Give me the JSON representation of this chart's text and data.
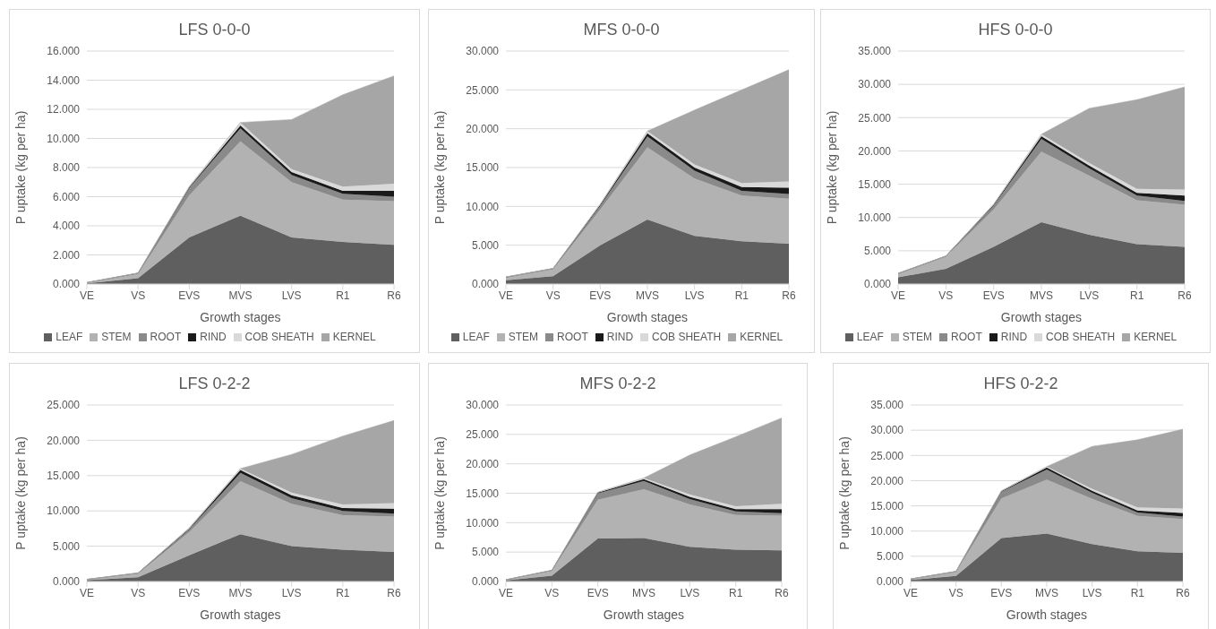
{
  "chart_data": [
    {
      "type": "area",
      "stacked": true,
      "title": "LFS 0-0-0",
      "xlabel": "Growth stages",
      "ylabel": "P uptake (kg per ha)",
      "categories": [
        "VE",
        "VS",
        "EVS",
        "MVS",
        "LVS",
        "R1",
        "R6"
      ],
      "ylim": [
        0,
        16
      ],
      "yticks": [
        {
          "value": 0,
          "label": "0.000"
        },
        {
          "value": 2,
          "label": "2.000"
        },
        {
          "value": 4,
          "label": "4.000"
        },
        {
          "value": 6,
          "label": "6.000"
        },
        {
          "value": 8,
          "label": "8.000"
        },
        {
          "value": 10,
          "label": "10.000"
        },
        {
          "value": 12,
          "label": "12.000"
        },
        {
          "value": 14,
          "label": "14.000"
        },
        {
          "value": 16,
          "label": "16.000"
        }
      ],
      "grid": "y",
      "legend": "bottom",
      "series": [
        {
          "name": "LEAF",
          "color": "#5f5f5f",
          "values": [
            0.05,
            0.4,
            3.2,
            4.7,
            3.2,
            2.9,
            2.7
          ]
        },
        {
          "name": "STEM",
          "color": "#b2b2b2",
          "values": [
            0.05,
            0.3,
            2.9,
            5.1,
            3.8,
            2.9,
            3.0
          ]
        },
        {
          "name": "ROOT",
          "color": "#8a8a8a",
          "values": [
            0,
            0.05,
            0.5,
            0.9,
            0.5,
            0.4,
            0.3
          ]
        },
        {
          "name": "RIND",
          "color": "#1a1a1a",
          "values": [
            0,
            0,
            0.05,
            0.2,
            0.2,
            0.2,
            0.4
          ]
        },
        {
          "name": "COB SHEATH",
          "color": "#d9d9d9",
          "values": [
            0,
            0,
            0.05,
            0.2,
            0.2,
            0.3,
            0.5
          ]
        },
        {
          "name": "KERNEL",
          "color": "#a6a6a6",
          "values": [
            0,
            0,
            0,
            0,
            3.4,
            6.3,
            7.4
          ]
        }
      ]
    },
    {
      "type": "area",
      "stacked": true,
      "title": "MFS 0-0-0",
      "xlabel": "Growth stages",
      "ylabel": "P uptake (kg per ha)",
      "categories": [
        "VE",
        "VS",
        "EVS",
        "MVS",
        "LVS",
        "R1",
        "R6"
      ],
      "ylim": [
        0,
        30
      ],
      "yticks": [
        {
          "value": 0,
          "label": "0.000"
        },
        {
          "value": 5,
          "label": "5.000"
        },
        {
          "value": 10,
          "label": "10.000"
        },
        {
          "value": 15,
          "label": "15.000"
        },
        {
          "value": 20,
          "label": "20.000"
        },
        {
          "value": 25,
          "label": "25.000"
        },
        {
          "value": 30,
          "label": "30.000"
        }
      ],
      "grid": "y",
      "legend": "bottom",
      "series": [
        {
          "name": "LEAF",
          "color": "#5f5f5f",
          "values": [
            0.5,
            1.0,
            5.0,
            8.3,
            6.2,
            5.5,
            5.2
          ]
        },
        {
          "name": "STEM",
          "color": "#b2b2b2",
          "values": [
            0.3,
            0.9,
            4.6,
            9.3,
            7.4,
            5.9,
            5.8
          ]
        },
        {
          "name": "ROOT",
          "color": "#8a8a8a",
          "values": [
            0.1,
            0.1,
            0.5,
            1.4,
            1.0,
            0.6,
            0.6
          ]
        },
        {
          "name": "RIND",
          "color": "#1a1a1a",
          "values": [
            0,
            0,
            0.1,
            0.4,
            0.4,
            0.5,
            0.8
          ]
        },
        {
          "name": "COB SHEATH",
          "color": "#d9d9d9",
          "values": [
            0,
            0,
            0.1,
            0.3,
            0.4,
            0.5,
            0.8
          ]
        },
        {
          "name": "KERNEL",
          "color": "#a6a6a6",
          "values": [
            0,
            0,
            0,
            0,
            7.0,
            12.0,
            14.4
          ]
        }
      ]
    },
    {
      "type": "area",
      "stacked": true,
      "title": "HFS 0-0-0",
      "xlabel": "Growth stages",
      "ylabel": "P uptake (kg per ha)",
      "categories": [
        "VE",
        "VS",
        "EVS",
        "MVS",
        "LVS",
        "R1",
        "R6"
      ],
      "ylim": [
        0,
        35
      ],
      "yticks": [
        {
          "value": 0,
          "label": "0.000"
        },
        {
          "value": 5,
          "label": "5.000"
        },
        {
          "value": 10,
          "label": "10.000"
        },
        {
          "value": 15,
          "label": "15.000"
        },
        {
          "value": 20,
          "label": "20.000"
        },
        {
          "value": 25,
          "label": "25.000"
        },
        {
          "value": 30,
          "label": "30.000"
        },
        {
          "value": 35,
          "label": "35.000"
        }
      ],
      "grid": "y",
      "legend": "bottom",
      "series": [
        {
          "name": "LEAF",
          "color": "#5f5f5f",
          "values": [
            1.0,
            2.3,
            5.6,
            9.3,
            7.4,
            6.0,
            5.6
          ]
        },
        {
          "name": "STEM",
          "color": "#b2b2b2",
          "values": [
            0.5,
            1.8,
            5.6,
            10.6,
            8.9,
            6.6,
            6.3
          ]
        },
        {
          "name": "ROOT",
          "color": "#8a8a8a",
          "values": [
            0.1,
            0.1,
            0.6,
            1.9,
            1.1,
            0.7,
            0.6
          ]
        },
        {
          "name": "RIND",
          "color": "#1a1a1a",
          "values": [
            0,
            0,
            0.1,
            0.4,
            0.4,
            0.4,
            0.8
          ]
        },
        {
          "name": "COB SHEATH",
          "color": "#d9d9d9",
          "values": [
            0,
            0,
            0.1,
            0.3,
            0.4,
            0.6,
            0.9
          ]
        },
        {
          "name": "KERNEL",
          "color": "#a6a6a6",
          "values": [
            0,
            0,
            0,
            0,
            8.2,
            13.4,
            15.4
          ]
        }
      ]
    },
    {
      "type": "area",
      "stacked": true,
      "title": "LFS 0-2-2",
      "xlabel": "Growth stages",
      "ylabel": "P uptake (kg per ha)",
      "categories": [
        "VE",
        "VS",
        "EVS",
        "MVS",
        "LVS",
        "R1",
        "R6"
      ],
      "ylim": [
        0,
        25
      ],
      "yticks": [
        {
          "value": 0,
          "label": "0.000"
        },
        {
          "value": 5,
          "label": "5.000"
        },
        {
          "value": 10,
          "label": "10.000"
        },
        {
          "value": 15,
          "label": "15.000"
        },
        {
          "value": 20,
          "label": "20.000"
        },
        {
          "value": 25,
          "label": "25.000"
        }
      ],
      "grid": "y",
      "series": [
        {
          "color": "#5f5f5f",
          "values": [
            0.2,
            0.6,
            3.7,
            6.7,
            5.0,
            4.5,
            4.2
          ]
        },
        {
          "color": "#b2b2b2",
          "values": [
            0.1,
            0.5,
            3.3,
            7.5,
            6.0,
            4.9,
            5.0
          ]
        },
        {
          "color": "#8a8a8a",
          "values": [
            0,
            0.1,
            0.4,
            1.2,
            0.8,
            0.6,
            0.4
          ]
        },
        {
          "color": "#1a1a1a",
          "values": [
            0,
            0,
            0.1,
            0.4,
            0.4,
            0.4,
            0.7
          ]
        },
        {
          "color": "#d9d9d9",
          "values": [
            0,
            0,
            0.1,
            0.2,
            0.4,
            0.5,
            0.8
          ]
        },
        {
          "color": "#a6a6a6",
          "values": [
            0,
            0,
            0,
            0,
            5.4,
            9.7,
            11.7
          ]
        }
      ]
    },
    {
      "type": "area",
      "stacked": true,
      "title": "MFS 0-2-2",
      "xlabel": "Growth stages",
      "ylabel": "P uptake (kg per ha)",
      "categories": [
        "VE",
        "VS",
        "EVS",
        "MVS",
        "LVS",
        "R1",
        "R6"
      ],
      "ylim": [
        0,
        30
      ],
      "yticks": [
        {
          "value": 0,
          "label": "0.000"
        },
        {
          "value": 5,
          "label": "5.000"
        },
        {
          "value": 10,
          "label": "10.000"
        },
        {
          "value": 15,
          "label": "15.000"
        },
        {
          "value": 20,
          "label": "20.000"
        },
        {
          "value": 25,
          "label": "25.000"
        },
        {
          "value": 30,
          "label": "30.000"
        }
      ],
      "grid": "y",
      "series": [
        {
          "color": "#5f5f5f",
          "values": [
            0.2,
            1.0,
            7.3,
            7.4,
            5.9,
            5.4,
            5.3
          ]
        },
        {
          "color": "#b2b2b2",
          "values": [
            0.1,
            0.8,
            6.6,
            8.3,
            7.2,
            5.9,
            5.9
          ]
        },
        {
          "color": "#8a8a8a",
          "values": [
            0,
            0.1,
            1.1,
            1.4,
            0.9,
            0.6,
            0.4
          ]
        },
        {
          "color": "#1a1a1a",
          "values": [
            0,
            0,
            0.1,
            0.3,
            0.4,
            0.4,
            0.7
          ]
        },
        {
          "color": "#d9d9d9",
          "values": [
            0,
            0,
            0.1,
            0.2,
            0.4,
            0.5,
            0.9
          ]
        },
        {
          "color": "#a6a6a6",
          "values": [
            0,
            0,
            0,
            0,
            6.7,
            11.8,
            14.6
          ]
        }
      ]
    },
    {
      "type": "area",
      "stacked": true,
      "title": "HFS 0-2-2",
      "xlabel": "Growth stages",
      "ylabel": "P uptake (kg per ha)",
      "categories": [
        "VE",
        "VS",
        "EVS",
        "MVS",
        "LVS",
        "R1",
        "R6"
      ],
      "ylim": [
        0,
        35
      ],
      "yticks": [
        {
          "value": 0,
          "label": "0.000"
        },
        {
          "value": 5,
          "label": "5.000"
        },
        {
          "value": 10,
          "label": "10.000"
        },
        {
          "value": 15,
          "label": "15.000"
        },
        {
          "value": 20,
          "label": "20.000"
        },
        {
          "value": 25,
          "label": "25.000"
        },
        {
          "value": 30,
          "label": "30.000"
        },
        {
          "value": 35,
          "label": "35.000"
        }
      ],
      "grid": "y",
      "series": [
        {
          "color": "#5f5f5f",
          "values": [
            0.3,
            1.1,
            8.6,
            9.5,
            7.4,
            6.0,
            5.7
          ]
        },
        {
          "color": "#b2b2b2",
          "values": [
            0.2,
            0.8,
            7.9,
            10.7,
            9.0,
            7.0,
            6.7
          ]
        },
        {
          "color": "#8a8a8a",
          "values": [
            0,
            0.1,
            1.3,
            2.0,
            1.2,
            0.7,
            0.5
          ]
        },
        {
          "color": "#1a1a1a",
          "values": [
            0,
            0,
            0.1,
            0.4,
            0.4,
            0.4,
            0.7
          ]
        },
        {
          "color": "#d9d9d9",
          "values": [
            0,
            0,
            0.1,
            0.2,
            0.4,
            0.6,
            0.9
          ]
        },
        {
          "color": "#a6a6a6",
          "values": [
            0,
            0,
            0,
            0,
            8.4,
            13.4,
            15.7
          ]
        }
      ]
    }
  ]
}
